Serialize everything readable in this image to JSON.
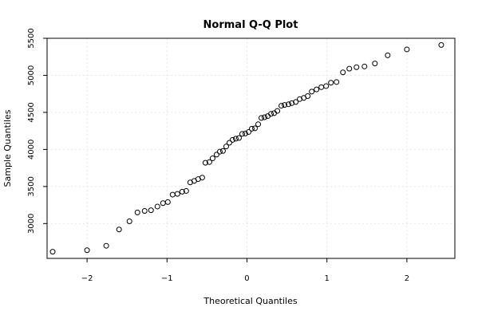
{
  "chart_data": {
    "type": "scatter",
    "title": "Normal Q-Q Plot",
    "xlabel": "Theoretical Quantiles",
    "ylabel": "Sample Quantiles",
    "xlim": [
      -2.5,
      2.6
    ],
    "ylim": [
      2530,
      5500
    ],
    "xticks": [
      -2,
      -1,
      0,
      1,
      2
    ],
    "xtick_labels": [
      "−2",
      "−1",
      "0",
      "1",
      "2"
    ],
    "yticks": [
      3000,
      3500,
      4000,
      4500,
      5000,
      5500
    ],
    "ytick_labels": [
      "3000",
      "3500",
      "4000",
      "4500",
      "5000",
      "5500"
    ],
    "grid": true,
    "marker": "open-circle",
    "points": [
      {
        "x": -2.43,
        "y": 2620
      },
      {
        "x": -2.0,
        "y": 2640
      },
      {
        "x": -1.76,
        "y": 2700
      },
      {
        "x": -1.6,
        "y": 2920
      },
      {
        "x": -1.47,
        "y": 3030
      },
      {
        "x": -1.37,
        "y": 3150
      },
      {
        "x": -1.28,
        "y": 3170
      },
      {
        "x": -1.2,
        "y": 3180
      },
      {
        "x": -1.12,
        "y": 3230
      },
      {
        "x": -1.05,
        "y": 3275
      },
      {
        "x": -0.99,
        "y": 3290
      },
      {
        "x": -0.93,
        "y": 3390
      },
      {
        "x": -0.87,
        "y": 3400
      },
      {
        "x": -0.81,
        "y": 3430
      },
      {
        "x": -0.76,
        "y": 3440
      },
      {
        "x": -0.71,
        "y": 3555
      },
      {
        "x": -0.66,
        "y": 3575
      },
      {
        "x": -0.61,
        "y": 3600
      },
      {
        "x": -0.56,
        "y": 3620
      },
      {
        "x": -0.52,
        "y": 3820
      },
      {
        "x": -0.47,
        "y": 3830
      },
      {
        "x": -0.43,
        "y": 3880
      },
      {
        "x": -0.38,
        "y": 3930
      },
      {
        "x": -0.34,
        "y": 3970
      },
      {
        "x": -0.3,
        "y": 3980
      },
      {
        "x": -0.26,
        "y": 4040
      },
      {
        "x": -0.22,
        "y": 4090
      },
      {
        "x": -0.18,
        "y": 4130
      },
      {
        "x": -0.14,
        "y": 4145
      },
      {
        "x": -0.1,
        "y": 4155
      },
      {
        "x": -0.06,
        "y": 4210
      },
      {
        "x": -0.02,
        "y": 4215
      },
      {
        "x": 0.02,
        "y": 4235
      },
      {
        "x": 0.06,
        "y": 4280
      },
      {
        "x": 0.1,
        "y": 4285
      },
      {
        "x": 0.14,
        "y": 4340
      },
      {
        "x": 0.18,
        "y": 4425
      },
      {
        "x": 0.22,
        "y": 4435
      },
      {
        "x": 0.26,
        "y": 4450
      },
      {
        "x": 0.3,
        "y": 4480
      },
      {
        "x": 0.34,
        "y": 4490
      },
      {
        "x": 0.38,
        "y": 4520
      },
      {
        "x": 0.43,
        "y": 4590
      },
      {
        "x": 0.47,
        "y": 4600
      },
      {
        "x": 0.52,
        "y": 4610
      },
      {
        "x": 0.56,
        "y": 4625
      },
      {
        "x": 0.61,
        "y": 4640
      },
      {
        "x": 0.66,
        "y": 4680
      },
      {
        "x": 0.71,
        "y": 4695
      },
      {
        "x": 0.76,
        "y": 4720
      },
      {
        "x": 0.81,
        "y": 4780
      },
      {
        "x": 0.87,
        "y": 4810
      },
      {
        "x": 0.93,
        "y": 4840
      },
      {
        "x": 0.99,
        "y": 4855
      },
      {
        "x": 1.05,
        "y": 4900
      },
      {
        "x": 1.12,
        "y": 4910
      },
      {
        "x": 1.2,
        "y": 5040
      },
      {
        "x": 1.28,
        "y": 5090
      },
      {
        "x": 1.37,
        "y": 5110
      },
      {
        "x": 1.47,
        "y": 5120
      },
      {
        "x": 1.6,
        "y": 5160
      },
      {
        "x": 1.76,
        "y": 5270
      },
      {
        "x": 2.0,
        "y": 5350
      },
      {
        "x": 2.43,
        "y": 5410
      }
    ]
  }
}
